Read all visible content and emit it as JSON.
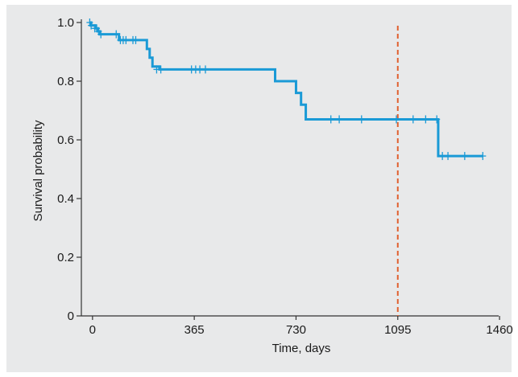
{
  "chart_data": {
    "type": "line",
    "title": "",
    "xlabel": "Time, days",
    "ylabel": "Survival probability",
    "xlim": [
      -40,
      1480
    ],
    "ylim": [
      0,
      1.0
    ],
    "xticks": [
      0,
      365,
      730,
      1095,
      1460
    ],
    "yticks": [
      0,
      0.2,
      0.4,
      0.6,
      0.8,
      1.0
    ],
    "xtick_labels": [
      "0",
      "365",
      "730",
      "1095",
      "1460"
    ],
    "ytick_labels": [
      "0",
      "0.2",
      "0.4",
      "0.6",
      "0.8",
      "1.0"
    ],
    "grid": false,
    "series": [
      {
        "color": "#1a9ad6",
        "step_points": [
          [
            -10,
            1.0
          ],
          [
            -5,
            0.99
          ],
          [
            10,
            0.98
          ],
          [
            20,
            0.97
          ],
          [
            25,
            0.96
          ],
          [
            90,
            0.96
          ],
          [
            95,
            0.94
          ],
          [
            190,
            0.94
          ],
          [
            195,
            0.91
          ],
          [
            205,
            0.88
          ],
          [
            215,
            0.85
          ],
          [
            240,
            0.84
          ],
          [
            650,
            0.84
          ],
          [
            655,
            0.8
          ],
          [
            725,
            0.8
          ],
          [
            730,
            0.76
          ],
          [
            748,
            0.72
          ],
          [
            765,
            0.67
          ],
          [
            1235,
            0.67
          ],
          [
            1240,
            0.545
          ],
          [
            1400,
            0.545
          ]
        ],
        "censor_x": [
          -10,
          -5,
          8,
          15,
          22,
          30,
          85,
          100,
          110,
          120,
          145,
          155,
          230,
          245,
          355,
          370,
          385,
          405,
          855,
          885,
          965,
          1090,
          1150,
          1195,
          1235,
          1255,
          1275,
          1335,
          1400
        ],
        "censor_y": [
          1.0,
          0.99,
          0.98,
          0.98,
          0.97,
          0.96,
          0.96,
          0.94,
          0.94,
          0.94,
          0.94,
          0.94,
          0.84,
          0.84,
          0.84,
          0.84,
          0.84,
          0.84,
          0.67,
          0.67,
          0.67,
          0.67,
          0.67,
          0.67,
          0.67,
          0.545,
          0.545,
          0.545,
          0.545
        ]
      }
    ],
    "reference_line": {
      "x": 1095,
      "color": "#e06030",
      "style": "dashed"
    }
  }
}
